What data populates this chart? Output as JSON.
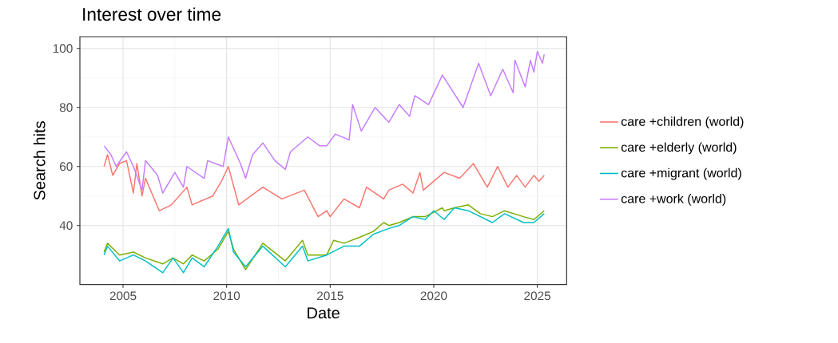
{
  "chart_data": {
    "type": "line",
    "title": "Interest over time",
    "xlabel": "Date",
    "ylabel": "Search hits",
    "xlim": [
      "2002-12",
      "2026-06"
    ],
    "ylim": [
      20,
      104
    ],
    "xticks": [
      "2005",
      "2010",
      "2015",
      "2020",
      "2025"
    ],
    "yticks": [
      40,
      60,
      80,
      100
    ],
    "grid": true,
    "legend": "right",
    "marker": "none",
    "line_style": "solid",
    "series": [
      {
        "name": "care +children (world)",
        "color": "#f8766d",
        "x": [
          "2004-02",
          "2004-04",
          "2004-07",
          "2004-11",
          "2005-03",
          "2005-07",
          "2005-09",
          "2005-12",
          "2006-02",
          "2006-10",
          "2007-05",
          "2008-02",
          "2008-05",
          "2009-05",
          "2009-10",
          "2010-02",
          "2010-08",
          "2011-10",
          "2012-09",
          "2013-10",
          "2014-06",
          "2014-11",
          "2015-01",
          "2015-09",
          "2016-06",
          "2016-10",
          "2017-08",
          "2017-11",
          "2018-07",
          "2019-01",
          "2019-05",
          "2019-07",
          "2020-07",
          "2021-04",
          "2021-12",
          "2022-08",
          "2023-02",
          "2023-08",
          "2024-01",
          "2024-06",
          "2024-11",
          "2025-02",
          "2025-05"
        ],
        "values": [
          60,
          64,
          57,
          61,
          62,
          51,
          61,
          50,
          56,
          45,
          47,
          53,
          47,
          50,
          55,
          60,
          47,
          53,
          49,
          52,
          43,
          45,
          43,
          49,
          46,
          53,
          49,
          52,
          54,
          51,
          58,
          52,
          58,
          56,
          61,
          53,
          60,
          53,
          57,
          53,
          57,
          55,
          57
        ]
      },
      {
        "name": "care +elderly (world)",
        "color": "#7cae00",
        "x": [
          "2004-02",
          "2004-04",
          "2004-11",
          "2005-07",
          "2006-02",
          "2006-12",
          "2007-06",
          "2007-12",
          "2008-05",
          "2008-12",
          "2009-08",
          "2010-02",
          "2010-05",
          "2010-12",
          "2011-10",
          "2012-11",
          "2013-09",
          "2013-12",
          "2014-11",
          "2015-03",
          "2015-09",
          "2016-06",
          "2017-02",
          "2017-08",
          "2017-11",
          "2018-05",
          "2019-01",
          "2019-08",
          "2020-06",
          "2020-07",
          "2021-01",
          "2021-09",
          "2022-04",
          "2022-11",
          "2023-06",
          "2024-05",
          "2024-11",
          "2025-05"
        ],
        "values": [
          31,
          34,
          30,
          31,
          29,
          27,
          29,
          27,
          30,
          28,
          32,
          38,
          32,
          25,
          34,
          28,
          35,
          30,
          30,
          35,
          34,
          36,
          38,
          41,
          40,
          41,
          43,
          43,
          46,
          45,
          46,
          47,
          44,
          43,
          45,
          43,
          42,
          45
        ]
      },
      {
        "name": "care +migrant (world)",
        "color": "#00bfc4",
        "x": [
          "2004-02",
          "2004-04",
          "2004-11",
          "2005-07",
          "2006-02",
          "2006-12",
          "2007-06",
          "2007-12",
          "2008-05",
          "2008-12",
          "2009-08",
          "2010-02",
          "2010-05",
          "2010-12",
          "2011-10",
          "2012-11",
          "2013-09",
          "2013-12",
          "2014-11",
          "2015-09",
          "2016-06",
          "2017-02",
          "2017-11",
          "2018-05",
          "2019-01",
          "2019-08",
          "2020-01",
          "2020-07",
          "2021-01",
          "2021-09",
          "2022-04",
          "2022-11",
          "2023-06",
          "2024-05",
          "2024-11",
          "2025-05"
        ],
        "values": [
          30,
          33,
          28,
          30,
          28,
          24,
          29,
          24,
          29,
          26,
          33,
          39,
          31,
          26,
          33,
          26,
          33,
          28,
          30,
          33,
          33,
          37,
          39,
          40,
          43,
          42,
          45,
          42,
          46,
          45,
          43,
          41,
          44,
          41,
          41,
          44
        ]
      },
      {
        "name": "care +work (world)",
        "color": "#c77cff",
        "x": [
          "2004-02",
          "2004-06",
          "2004-09",
          "2005-03",
          "2005-07",
          "2005-12",
          "2006-02",
          "2006-09",
          "2006-12",
          "2007-07",
          "2007-12",
          "2008-02",
          "2008-12",
          "2009-02",
          "2009-11",
          "2010-02",
          "2010-09",
          "2010-12",
          "2011-04",
          "2011-10",
          "2012-05",
          "2012-11",
          "2013-02",
          "2013-12",
          "2014-07",
          "2014-11",
          "2015-04",
          "2015-12",
          "2016-02",
          "2016-07",
          "2017-03",
          "2017-11",
          "2018-05",
          "2018-11",
          "2019-02",
          "2019-10",
          "2020-06",
          "2021-06",
          "2022-03",
          "2022-10",
          "2023-05",
          "2023-11",
          "2023-12",
          "2024-06",
          "2024-09",
          "2024-11",
          "2025-01",
          "2025-04",
          "2025-05"
        ],
        "values": [
          67,
          64,
          60,
          65,
          60,
          52,
          62,
          57,
          51,
          58,
          53,
          60,
          56,
          62,
          60,
          70,
          61,
          56,
          64,
          68,
          62,
          59,
          65,
          70,
          67,
          67,
          71,
          69,
          81,
          72,
          80,
          75,
          81,
          77,
          84,
          81,
          91,
          80,
          95,
          84,
          93,
          85,
          96,
          87,
          96,
          92,
          99,
          95,
          98
        ]
      }
    ]
  }
}
